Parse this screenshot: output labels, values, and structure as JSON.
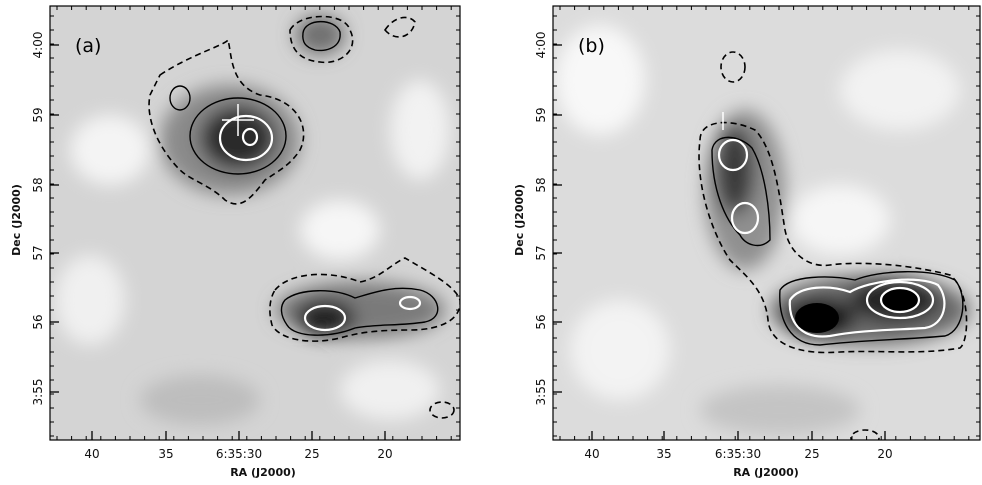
{
  "panels": [
    {
      "label": "(a)",
      "x_axis": {
        "title": "RA (J2000)",
        "ticks": [
          "40",
          "35",
          "6:35:30",
          "25",
          "20"
        ]
      },
      "y_axis": {
        "title": "Dec (J2000)",
        "ticks": [
          "4:00",
          "59",
          "58",
          "57",
          "56",
          "3:55"
        ]
      }
    },
    {
      "label": "(b)",
      "x_axis": {
        "title": "RA (J2000)",
        "ticks": [
          "40",
          "35",
          "6:35:30",
          "25",
          "20"
        ]
      },
      "y_axis": {
        "title": "Dec (J2000)",
        "ticks": [
          "4:00",
          "59",
          "58",
          "57",
          "56",
          "3:55"
        ]
      }
    }
  ]
}
